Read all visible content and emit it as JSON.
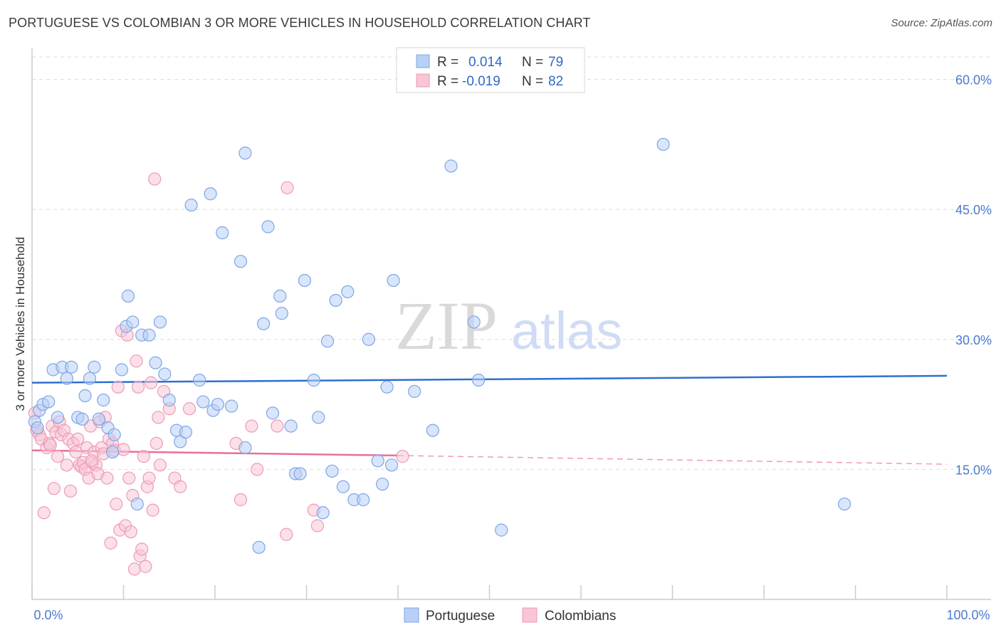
{
  "header": {
    "title": "PORTUGUESE VS COLOMBIAN 3 OR MORE VEHICLES IN HOUSEHOLD CORRELATION CHART",
    "source": "Source: ZipAtlas.com"
  },
  "watermark": {
    "zip": "ZIP",
    "atlas": "atlas"
  },
  "colors": {
    "portuguese_fill": "#b8d0f5",
    "portuguese_stroke": "#7ea6e6",
    "portuguese_line": "#2f6fd0",
    "colombian_fill": "#f8c6d6",
    "colombian_stroke": "#ee9ab6",
    "colombian_line": "#e8709a",
    "grid": "#dedede",
    "axis_label": "#4a7bd0"
  },
  "legend": {
    "rows": [
      {
        "r_label": "R =",
        "r_value": "0.014",
        "n_label": "N =",
        "n_value": "79"
      },
      {
        "r_label": "R =",
        "r_value": "-0.019",
        "n_label": "N =",
        "n_value": "82"
      }
    ]
  },
  "bottom_legend": {
    "portuguese": "Portuguese",
    "colombians": "Colombians"
  },
  "chart_data": {
    "type": "scatter",
    "title": "PORTUGUESE VS COLOMBIAN 3 OR MORE VEHICLES IN HOUSEHOLD CORRELATION CHART",
    "xlabel": "",
    "ylabel": "3 or more Vehicles in Household",
    "xlim": [
      0,
      100
    ],
    "ylim": [
      0,
      63
    ],
    "x_tick_labels": [
      "0.0%",
      "100.0%"
    ],
    "y_ticks": [
      15,
      30,
      45,
      60
    ],
    "y_tick_labels": [
      "15.0%",
      "30.0%",
      "45.0%",
      "60.0%"
    ],
    "grid": true,
    "series": [
      {
        "name": "Portuguese",
        "r": 0.014,
        "n": 79,
        "trend": {
          "x": [
            0,
            100
          ],
          "y": [
            25.0,
            25.8
          ]
        },
        "points": [
          [
            0.3,
            20.5
          ],
          [
            0.6,
            19.8
          ],
          [
            0.8,
            21.8
          ],
          [
            1.2,
            22.5
          ],
          [
            1.8,
            22.8
          ],
          [
            2.3,
            26.5
          ],
          [
            2.8,
            21.0
          ],
          [
            3.3,
            26.8
          ],
          [
            3.8,
            25.5
          ],
          [
            4.3,
            26.8
          ],
          [
            5.0,
            21.0
          ],
          [
            5.5,
            20.8
          ],
          [
            5.8,
            23.5
          ],
          [
            6.3,
            25.5
          ],
          [
            6.8,
            26.8
          ],
          [
            7.3,
            20.8
          ],
          [
            7.8,
            23.0
          ],
          [
            8.3,
            19.8
          ],
          [
            8.8,
            17.0
          ],
          [
            9.0,
            19.0
          ],
          [
            9.8,
            26.5
          ],
          [
            10.3,
            31.5
          ],
          [
            10.5,
            35.0
          ],
          [
            11.0,
            32.0
          ],
          [
            11.5,
            11.0
          ],
          [
            12.0,
            30.5
          ],
          [
            12.8,
            30.5
          ],
          [
            13.5,
            27.3
          ],
          [
            14.0,
            32.0
          ],
          [
            14.5,
            26.0
          ],
          [
            15.0,
            23.0
          ],
          [
            15.8,
            19.5
          ],
          [
            16.2,
            18.2
          ],
          [
            16.8,
            19.3
          ],
          [
            17.4,
            45.5
          ],
          [
            18.3,
            25.3
          ],
          [
            18.7,
            22.8
          ],
          [
            19.5,
            46.8
          ],
          [
            19.8,
            21.8
          ],
          [
            20.3,
            22.5
          ],
          [
            20.8,
            42.3
          ],
          [
            21.8,
            22.3
          ],
          [
            22.8,
            39.0
          ],
          [
            23.3,
            17.5
          ],
          [
            23.3,
            51.5
          ],
          [
            24.8,
            6.0
          ],
          [
            25.3,
            31.8
          ],
          [
            25.8,
            43.0
          ],
          [
            26.3,
            21.5
          ],
          [
            27.1,
            35.0
          ],
          [
            27.3,
            33.0
          ],
          [
            28.3,
            20.0
          ],
          [
            28.8,
            14.5
          ],
          [
            29.3,
            14.5
          ],
          [
            29.8,
            36.8
          ],
          [
            30.8,
            25.3
          ],
          [
            31.3,
            21.0
          ],
          [
            31.8,
            10.0
          ],
          [
            32.3,
            29.8
          ],
          [
            32.8,
            14.8
          ],
          [
            33.2,
            34.5
          ],
          [
            34.0,
            13.0
          ],
          [
            34.5,
            35.5
          ],
          [
            35.2,
            11.5
          ],
          [
            36.2,
            11.5
          ],
          [
            36.8,
            30.0
          ],
          [
            37.8,
            16.0
          ],
          [
            38.3,
            13.3
          ],
          [
            38.8,
            24.5
          ],
          [
            39.3,
            15.5
          ],
          [
            39.5,
            36.8
          ],
          [
            41.8,
            24.0
          ],
          [
            43.8,
            19.5
          ],
          [
            45.8,
            50.0
          ],
          [
            48.3,
            32.0
          ],
          [
            48.8,
            25.3
          ],
          [
            51.3,
            8.0
          ],
          [
            69.0,
            52.5
          ],
          [
            88.8,
            11.0
          ]
        ]
      },
      {
        "name": "Colombians",
        "r": -0.019,
        "n": 82,
        "trend": {
          "x": [
            0,
            40
          ],
          "y": [
            17.2,
            16.6
          ]
        },
        "trend_dashed": {
          "x": [
            40,
            100
          ],
          "y": [
            16.6,
            15.6
          ]
        },
        "points": [
          [
            0.3,
            21.5
          ],
          [
            0.5,
            19.5
          ],
          [
            0.8,
            19.0
          ],
          [
            1.0,
            18.5
          ],
          [
            1.3,
            10.0
          ],
          [
            1.6,
            17.5
          ],
          [
            1.9,
            18.0
          ],
          [
            2.2,
            20.0
          ],
          [
            2.4,
            12.8
          ],
          [
            2.6,
            19.3
          ],
          [
            2.8,
            16.5
          ],
          [
            3.0,
            20.5
          ],
          [
            3.2,
            19.0
          ],
          [
            3.5,
            19.5
          ],
          [
            3.8,
            15.5
          ],
          [
            4.0,
            18.5
          ],
          [
            4.2,
            12.5
          ],
          [
            4.5,
            18.0
          ],
          [
            4.8,
            17.0
          ],
          [
            5.0,
            18.5
          ],
          [
            5.2,
            15.5
          ],
          [
            5.4,
            15.3
          ],
          [
            5.6,
            15.8
          ],
          [
            5.8,
            15.0
          ],
          [
            6.0,
            17.5
          ],
          [
            6.2,
            14.0
          ],
          [
            6.4,
            20.0
          ],
          [
            6.6,
            15.8
          ],
          [
            6.8,
            17.0
          ],
          [
            7.0,
            15.5
          ],
          [
            7.2,
            14.5
          ],
          [
            7.4,
            20.5
          ],
          [
            7.6,
            17.5
          ],
          [
            7.8,
            16.8
          ],
          [
            8.0,
            21.0
          ],
          [
            8.2,
            14.0
          ],
          [
            8.4,
            18.5
          ],
          [
            8.6,
            6.5
          ],
          [
            8.8,
            18.0
          ],
          [
            9.0,
            17.2
          ],
          [
            9.2,
            11.0
          ],
          [
            9.4,
            24.5
          ],
          [
            9.6,
            8.0
          ],
          [
            9.8,
            31.0
          ],
          [
            10.0,
            17.3
          ],
          [
            10.2,
            8.5
          ],
          [
            10.4,
            30.5
          ],
          [
            10.6,
            14.0
          ],
          [
            10.8,
            7.8
          ],
          [
            11.0,
            12.0
          ],
          [
            11.2,
            3.5
          ],
          [
            11.4,
            27.5
          ],
          [
            11.6,
            24.5
          ],
          [
            11.8,
            5.0
          ],
          [
            12.0,
            5.8
          ],
          [
            12.2,
            16.5
          ],
          [
            12.4,
            3.8
          ],
          [
            12.6,
            13.0
          ],
          [
            12.8,
            14.0
          ],
          [
            13.0,
            25.0
          ],
          [
            13.2,
            10.3
          ],
          [
            13.4,
            48.5
          ],
          [
            13.6,
            18.0
          ],
          [
            13.8,
            21.0
          ],
          [
            14.0,
            15.5
          ],
          [
            14.4,
            24.0
          ],
          [
            15.0,
            22.0
          ],
          [
            15.6,
            14.0
          ],
          [
            16.2,
            13.0
          ],
          [
            17.2,
            22.0
          ],
          [
            22.3,
            18.0
          ],
          [
            22.8,
            11.5
          ],
          [
            24.0,
            20.0
          ],
          [
            24.6,
            15.0
          ],
          [
            26.8,
            20.0
          ],
          [
            27.8,
            7.5
          ],
          [
            27.9,
            47.5
          ],
          [
            30.8,
            10.3
          ],
          [
            31.2,
            8.5
          ],
          [
            40.5,
            16.5
          ],
          [
            2.0,
            17.8
          ],
          [
            6.5,
            16.0
          ]
        ]
      }
    ]
  }
}
